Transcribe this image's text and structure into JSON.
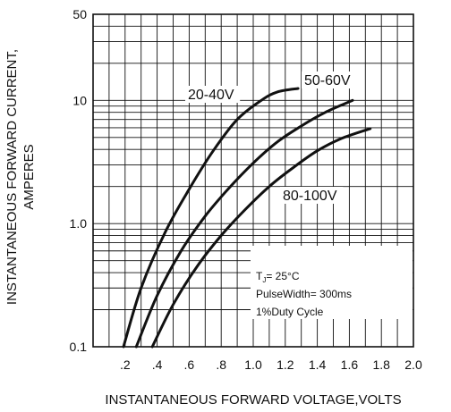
{
  "chart_data": {
    "type": "line",
    "xlabel": "INSTANTANEOUS FORWARD VOLTAGE,VOLTS",
    "ylabel": [
      "INSTANTANEOUS FORWARD CURRENT,",
      "AMPERES"
    ],
    "x_scale": "linear",
    "y_scale": "log",
    "xlim": [
      0.0,
      2.0
    ],
    "ylim": [
      0.1,
      50
    ],
    "grid": true,
    "x_ticks": [
      {
        "value": 0.2,
        "label": ".2"
      },
      {
        "value": 0.4,
        "label": ".4"
      },
      {
        "value": 0.6,
        "label": ".6"
      },
      {
        "value": 0.8,
        "label": ".8"
      },
      {
        "value": 1.0,
        "label": "1.0"
      },
      {
        "value": 1.2,
        "label": "1.2"
      },
      {
        "value": 1.4,
        "label": "1.4"
      },
      {
        "value": 1.6,
        "label": "1.6"
      },
      {
        "value": 1.8,
        "label": "1.8"
      },
      {
        "value": 2.0,
        "label": "2.0"
      }
    ],
    "y_ticks": [
      {
        "value": 0.1,
        "label": "0.1"
      },
      {
        "value": 1.0,
        "label": "1.0"
      },
      {
        "value": 10,
        "label": "10"
      },
      {
        "value": 50,
        "label": "50"
      }
    ],
    "series": [
      {
        "name": "20-40V",
        "x": [
          0.19,
          0.3,
          0.45,
          0.6,
          0.75,
          0.9,
          1.05,
          1.15,
          1.28
        ],
        "y": [
          0.1,
          0.3,
          0.85,
          1.9,
          3.9,
          7.0,
          10.0,
          11.7,
          12.5
        ]
      },
      {
        "name": "50-60V",
        "x": [
          0.27,
          0.4,
          0.55,
          0.7,
          0.85,
          1.0,
          1.15,
          1.3,
          1.45,
          1.62
        ],
        "y": [
          0.1,
          0.26,
          0.6,
          1.15,
          1.95,
          3.1,
          4.6,
          6.2,
          8.0,
          10.0
        ]
      },
      {
        "name": "80-100V",
        "x": [
          0.37,
          0.5,
          0.65,
          0.8,
          0.95,
          1.1,
          1.25,
          1.4,
          1.55,
          1.73
        ],
        "y": [
          0.1,
          0.22,
          0.45,
          0.8,
          1.3,
          2.0,
          2.85,
          3.9,
          4.9,
          5.9
        ]
      }
    ],
    "annotations": {
      "condition1": "T",
      "condition1_sub": "J",
      "condition1_rest": "= 25°C",
      "condition2": "PulseWidth= 300ms",
      "condition3": "1%Duty Cycle"
    }
  }
}
